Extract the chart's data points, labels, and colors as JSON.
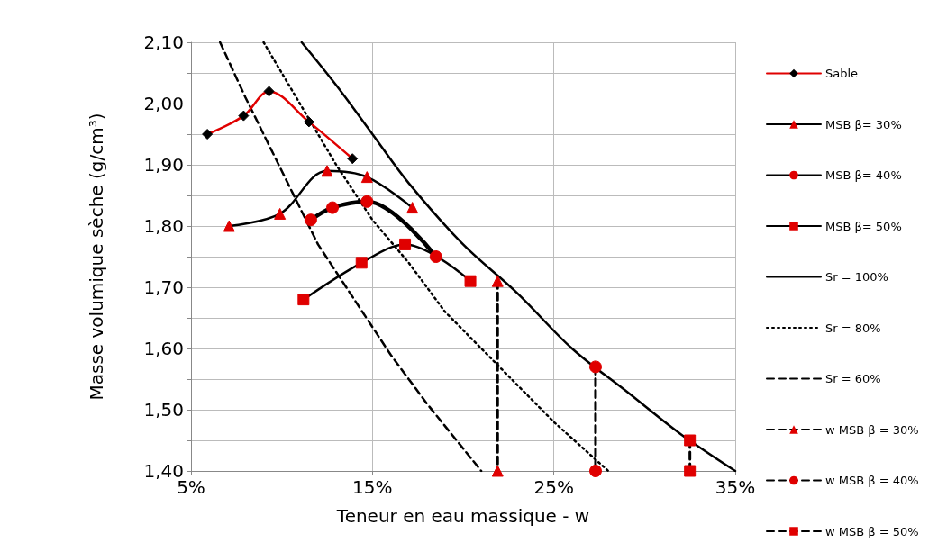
{
  "chart_data": {
    "type": "line",
    "xlabel": "Teneur en eau massique - w",
    "ylabel": "Masse volumique sèche (g/cm³)",
    "xlim": [
      5,
      35
    ],
    "xticks": [
      {
        "value": 5,
        "label": "5%"
      },
      {
        "value": 15,
        "label": "15%"
      },
      {
        "value": 25,
        "label": "25%"
      },
      {
        "value": 35,
        "label": "35%"
      }
    ],
    "ylim": [
      1.4,
      2.1
    ],
    "yticks": [
      {
        "value": 1.4,
        "label": "1,40"
      },
      {
        "value": 1.45,
        "label": null
      },
      {
        "value": 1.5,
        "label": "1,50"
      },
      {
        "value": 1.55,
        "label": null
      },
      {
        "value": 1.6,
        "label": "1,60"
      },
      {
        "value": 1.65,
        "label": null
      },
      {
        "value": 1.7,
        "label": "1,70"
      },
      {
        "value": 1.75,
        "label": null
      },
      {
        "value": 1.8,
        "label": "1,80"
      },
      {
        "value": 1.85,
        "label": null
      },
      {
        "value": 1.9,
        "label": "1,90"
      },
      {
        "value": 1.95,
        "label": null
      },
      {
        "value": 2.0,
        "label": "2,00"
      },
      {
        "value": 2.05,
        "label": null
      },
      {
        "value": 2.1,
        "label": "2,10"
      }
    ],
    "grid": true,
    "legend": "right",
    "series": [
      {
        "name": "Sable",
        "color": "#e00000",
        "colors": [
          "#000000",
          "#000000",
          "#000000",
          "#000000",
          "#000000"
        ],
        "marker": "diamond",
        "line_style": "solid",
        "x": [
          5.9,
          7.9,
          9.3,
          11.5,
          13.9
        ],
        "values": [
          1.95,
          1.98,
          2.02,
          1.97,
          1.91
        ]
      },
      {
        "name": "MSB β= 30%",
        "color": "#000000",
        "colors": [
          "#e00000",
          "#e00000",
          "#e00000",
          "#e00000",
          "#e00000"
        ],
        "marker": "triangle",
        "line_style": "solid",
        "x": [
          7.1,
          9.9,
          12.5,
          14.7,
          17.2
        ],
        "values": [
          1.8,
          1.82,
          1.89,
          1.88,
          1.83
        ]
      },
      {
        "name": "MSB β= 40%",
        "color": "#000000",
        "colors": [
          "#e00000",
          "#e00000",
          "#e00000",
          "#e00000"
        ],
        "marker": "circle",
        "line_style": "solid",
        "x": [
          11.6,
          12.8,
          14.7,
          18.5
        ],
        "values": [
          1.81,
          1.83,
          1.84,
          1.75
        ]
      },
      {
        "name": "MSB β= 50%",
        "color": "#000000",
        "colors": [
          "#e00000",
          "#e00000",
          "#e00000",
          "#e00000"
        ],
        "marker": "square",
        "line_style": "solid",
        "x": [
          11.2,
          14.4,
          16.8,
          20.4
        ],
        "values": [
          1.68,
          1.74,
          1.77,
          1.71
        ]
      },
      {
        "name": "Sr = 100%",
        "color": "#000000",
        "marker": "none",
        "line_style": "solid",
        "x": [
          11.1,
          13,
          15,
          17,
          20,
          23,
          26,
          29,
          32,
          35
        ],
        "values": [
          2.1,
          2.03,
          1.95,
          1.87,
          1.77,
          1.69,
          1.6,
          1.53,
          1.46,
          1.4
        ]
      },
      {
        "name": "Sr = 80%",
        "color": "#000000",
        "marker": "none",
        "line_style": "dotted",
        "x": [
          9,
          11,
          13,
          15,
          17,
          19,
          21,
          23,
          25,
          28
        ],
        "values": [
          2.1,
          2.0,
          1.9,
          1.81,
          1.74,
          1.66,
          1.6,
          1.54,
          1.48,
          1.4
        ]
      },
      {
        "name": "Sr = 60%",
        "color": "#000000",
        "marker": "none",
        "line_style": "dashed",
        "x": [
          6.6,
          8,
          10,
          12,
          14,
          16,
          18,
          21
        ],
        "values": [
          2.1,
          2.01,
          1.89,
          1.77,
          1.68,
          1.59,
          1.51,
          1.4
        ]
      },
      {
        "name": "w MSB β = 30%",
        "color": "#000000",
        "colors": [
          "#e00000",
          "#e00000"
        ],
        "marker": "triangle",
        "line_style": "dashed",
        "x": [
          21.9,
          21.9
        ],
        "values": [
          1.71,
          1.4
        ]
      },
      {
        "name": "w MSB β = 40%",
        "color": "#000000",
        "colors": [
          "#e00000",
          "#e00000"
        ],
        "marker": "circle",
        "line_style": "dashed",
        "x": [
          27.3,
          27.3
        ],
        "values": [
          1.57,
          1.4
        ]
      },
      {
        "name": "w MSB β = 50%",
        "color": "#000000",
        "colors": [
          "#e00000",
          "#e00000"
        ],
        "marker": "square",
        "line_style": "dashed",
        "x": [
          32.5,
          32.5
        ],
        "values": [
          1.45,
          1.4
        ]
      }
    ]
  }
}
